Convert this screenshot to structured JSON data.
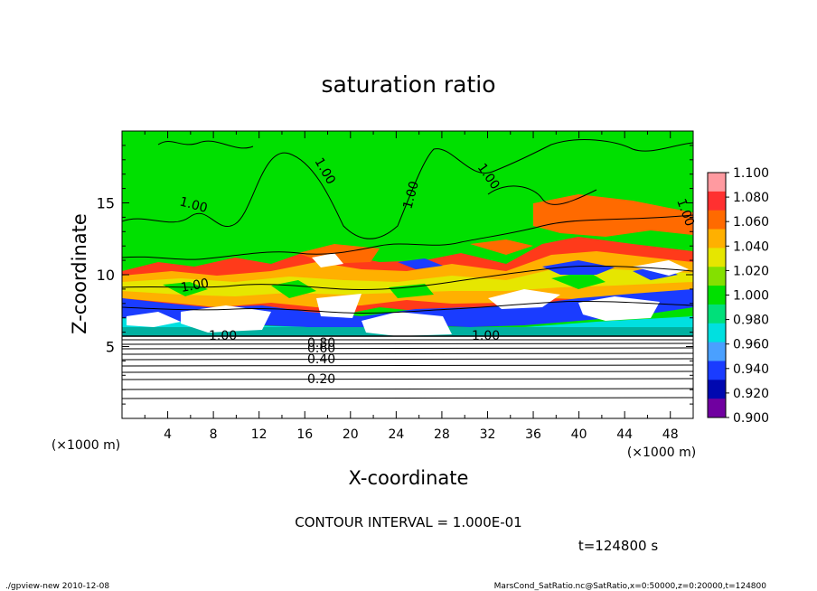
{
  "chart_data": {
    "type": "heatmap",
    "title": "saturation ratio",
    "xlabel": "X-coordinate",
    "ylabel": "Z-coordinate",
    "x_unit": "(×1000 m)",
    "z_unit": "(×1000 m)",
    "xlim": [
      0,
      50
    ],
    "zlim": [
      0,
      20
    ],
    "x_ticks": [
      "4",
      "8",
      "12",
      "16",
      "20",
      "24",
      "28",
      "32",
      "36",
      "40",
      "44",
      "48"
    ],
    "z_ticks": [
      "5",
      "10",
      "15"
    ],
    "colorbar": {
      "levels": [
        "1.100",
        "1.080",
        "1.060",
        "1.040",
        "1.020",
        "1.000",
        "0.980",
        "0.960",
        "0.940",
        "0.920",
        "0.900"
      ],
      "colors": [
        "#ff9aa0",
        "#ff3030",
        "#ff6a00",
        "#ffb000",
        "#e6e600",
        "#84e000",
        "#00e000",
        "#00e07a",
        "#00e0e0",
        "#4aa0ff",
        "#1a3cff",
        "#0008b0",
        "#7000a0"
      ]
    },
    "contour_labels": [
      {
        "text": "1.00"
      },
      {
        "text": "1.00"
      },
      {
        "text": "1.00"
      },
      {
        "text": "1.00"
      },
      {
        "text": "1.00"
      },
      {
        "text": "1.00"
      },
      {
        "text": "1.00"
      },
      {
        "text": "1.00"
      },
      {
        "text": "0.80"
      },
      {
        "text": "0.60"
      },
      {
        "text": "0.40"
      },
      {
        "text": "0.20"
      }
    ],
    "contour_interval_text": "CONTOUR INTERVAL = 1.000E-01",
    "time_text": "t=124800 s"
  },
  "footer": {
    "left": "./gpview-new   2010-12-08",
    "right": "MarsCond_SatRatio.nc@SatRatio,x=0:50000,z=0:20000,t=124800"
  }
}
